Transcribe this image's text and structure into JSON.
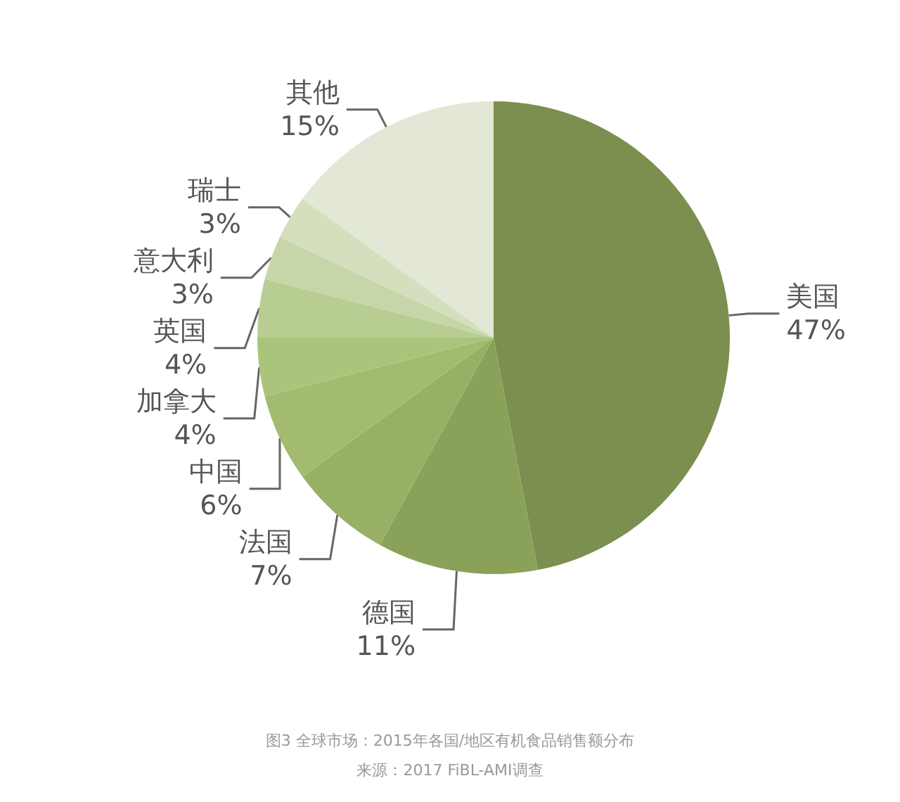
{
  "chart_data": {
    "type": "pie",
    "title": "图3 全球市场：2015年各国/地区有机食品销售额分布",
    "annotations": [
      "来源：2017 FiBL-AMI调查"
    ],
    "categories": [
      "美国",
      "德国",
      "法国",
      "中国",
      "加拿大",
      "英国",
      "意大利",
      "瑞士",
      "其他"
    ],
    "values": [
      47,
      11,
      7,
      6,
      4,
      4,
      3,
      3,
      15
    ],
    "colors": [
      "#7b8f4f",
      "#8aa159",
      "#97b065",
      "#a2bb6f",
      "#abc47c",
      "#b8cd92",
      "#c6d6a8",
      "#d4dfbe",
      "#e2e7d6"
    ],
    "value_labels": [
      "47%",
      "11%",
      "7%",
      "6%",
      "4%",
      "4%",
      "3%",
      "3%",
      "15%"
    ],
    "legend": false
  }
}
